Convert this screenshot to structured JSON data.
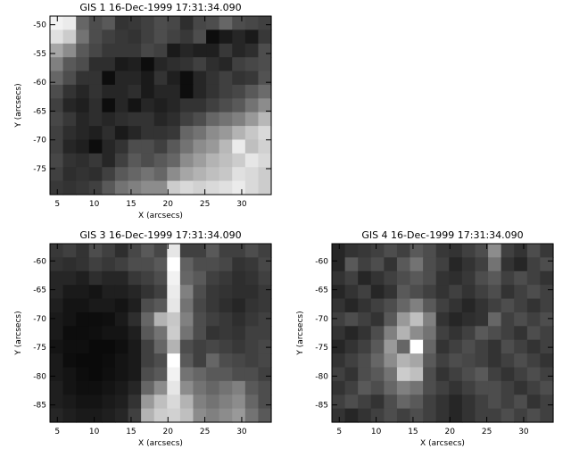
{
  "chart_data": [
    {
      "type": "heatmap",
      "title": "GIS 1 16-Dec-1999 17:31:34.090",
      "xlabel": "X (arcsecs)",
      "ylabel": "Y (arcsecs)",
      "xlim": [
        4,
        34
      ],
      "ylim": [
        -79.5,
        -48.5
      ],
      "xticks": [
        5,
        10,
        15,
        20,
        25,
        30
      ],
      "yticks": [
        -50,
        -55,
        -60,
        -65,
        -70,
        -75
      ],
      "colormap": "grayscale",
      "grid_values": [
        [
          0.95,
          0.92,
          0.4,
          0.3,
          0.35,
          0.2,
          0.22,
          0.25,
          0.3,
          0.28,
          0.18,
          0.28,
          0.3,
          0.4,
          0.3,
          0.28,
          0.25
        ],
        [
          0.88,
          0.8,
          0.45,
          0.3,
          0.25,
          0.22,
          0.2,
          0.25,
          0.3,
          0.26,
          0.22,
          0.3,
          0.05,
          0.1,
          0.15,
          0.1,
          0.22
        ],
        [
          0.65,
          0.55,
          0.35,
          0.28,
          0.22,
          0.22,
          0.22,
          0.28,
          0.25,
          0.1,
          0.15,
          0.12,
          0.12,
          0.22,
          0.15,
          0.18,
          0.3
        ],
        [
          0.5,
          0.35,
          0.3,
          0.18,
          0.18,
          0.1,
          0.12,
          0.05,
          0.15,
          0.18,
          0.2,
          0.25,
          0.18,
          0.15,
          0.25,
          0.28,
          0.3
        ],
        [
          0.4,
          0.3,
          0.2,
          0.2,
          0.05,
          0.15,
          0.15,
          0.1,
          0.2,
          0.12,
          0.05,
          0.15,
          0.2,
          0.25,
          0.2,
          0.22,
          0.32
        ],
        [
          0.3,
          0.2,
          0.15,
          0.2,
          0.15,
          0.15,
          0.18,
          0.1,
          0.15,
          0.15,
          0.05,
          0.15,
          0.2,
          0.25,
          0.28,
          0.35,
          0.42
        ],
        [
          0.25,
          0.15,
          0.12,
          0.18,
          0.05,
          0.15,
          0.08,
          0.15,
          0.12,
          0.15,
          0.2,
          0.2,
          0.25,
          0.3,
          0.35,
          0.45,
          0.55
        ],
        [
          0.28,
          0.22,
          0.15,
          0.18,
          0.15,
          0.18,
          0.2,
          0.2,
          0.15,
          0.18,
          0.25,
          0.3,
          0.4,
          0.45,
          0.5,
          0.6,
          0.72
        ],
        [
          0.25,
          0.18,
          0.15,
          0.12,
          0.18,
          0.1,
          0.15,
          0.2,
          0.2,
          0.22,
          0.4,
          0.45,
          0.55,
          0.6,
          0.7,
          0.78,
          0.85
        ],
        [
          0.25,
          0.15,
          0.12,
          0.05,
          0.15,
          0.2,
          0.3,
          0.3,
          0.25,
          0.35,
          0.45,
          0.55,
          0.6,
          0.72,
          0.92,
          0.75,
          0.82
        ],
        [
          0.28,
          0.2,
          0.18,
          0.22,
          0.15,
          0.25,
          0.35,
          0.3,
          0.35,
          0.4,
          0.55,
          0.62,
          0.7,
          0.75,
          0.8,
          0.9,
          0.85
        ],
        [
          0.25,
          0.18,
          0.2,
          0.18,
          0.25,
          0.35,
          0.4,
          0.45,
          0.4,
          0.55,
          0.65,
          0.7,
          0.75,
          0.78,
          0.88,
          0.85,
          0.8
        ],
        [
          0.22,
          0.2,
          0.22,
          0.25,
          0.35,
          0.45,
          0.5,
          0.55,
          0.55,
          0.8,
          0.85,
          0.82,
          0.85,
          0.88,
          0.92,
          0.85,
          0.8
        ]
      ]
    },
    {
      "type": "heatmap",
      "title": "GIS 3 16-Dec-1999 17:31:34.090",
      "xlabel": "X (arcsecs)",
      "ylabel": "Y (arcsecs)",
      "xlim": [
        4,
        34
      ],
      "ylim": [
        -88,
        -57
      ],
      "xticks": [
        5,
        10,
        15,
        20,
        25,
        30
      ],
      "yticks": [
        -60,
        -65,
        -70,
        -75,
        -80,
        -85
      ],
      "colormap": "grayscale",
      "grid_values": [
        [
          0.22,
          0.25,
          0.2,
          0.3,
          0.25,
          0.18,
          0.28,
          0.35,
          0.28,
          0.9,
          0.25,
          0.25,
          0.35,
          0.25,
          0.25,
          0.3,
          0.25
        ],
        [
          0.2,
          0.18,
          0.2,
          0.25,
          0.22,
          0.25,
          0.3,
          0.3,
          0.35,
          1.0,
          0.38,
          0.3,
          0.3,
          0.28,
          0.2,
          0.22,
          0.28
        ],
        [
          0.15,
          0.15,
          0.12,
          0.18,
          0.15,
          0.15,
          0.22,
          0.25,
          0.3,
          0.95,
          0.4,
          0.35,
          0.25,
          0.22,
          0.18,
          0.2,
          0.25
        ],
        [
          0.15,
          0.1,
          0.1,
          0.08,
          0.12,
          0.12,
          0.15,
          0.2,
          0.25,
          0.92,
          0.5,
          0.3,
          0.22,
          0.2,
          0.18,
          0.18,
          0.22
        ],
        [
          0.12,
          0.08,
          0.08,
          0.1,
          0.1,
          0.08,
          0.12,
          0.3,
          0.35,
          0.9,
          0.45,
          0.28,
          0.22,
          0.18,
          0.15,
          0.2,
          0.22
        ],
        [
          0.1,
          0.08,
          0.05,
          0.05,
          0.06,
          0.1,
          0.18,
          0.4,
          0.7,
          0.78,
          0.5,
          0.3,
          0.25,
          0.22,
          0.18,
          0.22,
          0.25
        ],
        [
          0.1,
          0.05,
          0.05,
          0.06,
          0.08,
          0.08,
          0.12,
          0.35,
          0.45,
          0.8,
          0.45,
          0.3,
          0.2,
          0.22,
          0.2,
          0.25,
          0.25
        ],
        [
          0.08,
          0.06,
          0.06,
          0.04,
          0.04,
          0.06,
          0.1,
          0.25,
          0.4,
          0.7,
          0.3,
          0.25,
          0.28,
          0.25,
          0.22,
          0.25,
          0.28
        ],
        [
          0.1,
          0.05,
          0.04,
          0.04,
          0.05,
          0.08,
          0.1,
          0.25,
          0.3,
          1.0,
          0.35,
          0.25,
          0.4,
          0.3,
          0.28,
          0.25,
          0.28
        ],
        [
          0.1,
          0.08,
          0.05,
          0.04,
          0.06,
          0.08,
          0.1,
          0.3,
          0.35,
          0.95,
          0.45,
          0.4,
          0.35,
          0.35,
          0.3,
          0.3,
          0.25
        ],
        [
          0.12,
          0.08,
          0.06,
          0.06,
          0.08,
          0.1,
          0.15,
          0.4,
          0.55,
          0.9,
          0.55,
          0.45,
          0.4,
          0.45,
          0.5,
          0.35,
          0.3
        ],
        [
          0.12,
          0.1,
          0.08,
          0.08,
          0.1,
          0.12,
          0.2,
          0.6,
          0.75,
          0.85,
          0.7,
          0.5,
          0.45,
          0.5,
          0.55,
          0.4,
          0.3
        ],
        [
          0.15,
          0.12,
          0.1,
          0.1,
          0.12,
          0.15,
          0.25,
          0.7,
          0.8,
          0.82,
          0.75,
          0.55,
          0.5,
          0.55,
          0.6,
          0.45,
          0.35
        ]
      ]
    },
    {
      "type": "heatmap",
      "title": "GIS 4 16-Dec-1999 17:31:34.090",
      "xlabel": "X (arcsecs)",
      "ylabel": "Y (arcsecs)",
      "xlim": [
        4,
        34
      ],
      "ylim": [
        -88,
        -57
      ],
      "xticks": [
        5,
        10,
        15,
        20,
        25,
        30
      ],
      "yticks": [
        -60,
        -65,
        -70,
        -75,
        -80,
        -85
      ],
      "colormap": "grayscale",
      "grid_values": [
        [
          0.15,
          0.2,
          0.22,
          0.25,
          0.3,
          0.25,
          0.35,
          0.3,
          0.22,
          0.2,
          0.25,
          0.3,
          0.55,
          0.25,
          0.2,
          0.3,
          0.22
        ],
        [
          0.15,
          0.35,
          0.25,
          0.3,
          0.2,
          0.35,
          0.45,
          0.3,
          0.25,
          0.15,
          0.2,
          0.25,
          0.45,
          0.2,
          0.15,
          0.25,
          0.3
        ],
        [
          0.2,
          0.25,
          0.15,
          0.2,
          0.25,
          0.3,
          0.35,
          0.3,
          0.2,
          0.18,
          0.22,
          0.3,
          0.35,
          0.25,
          0.3,
          0.25,
          0.2
        ],
        [
          0.15,
          0.2,
          0.25,
          0.15,
          0.2,
          0.35,
          0.3,
          0.25,
          0.2,
          0.25,
          0.2,
          0.25,
          0.3,
          0.2,
          0.25,
          0.3,
          0.25
        ],
        [
          0.2,
          0.15,
          0.2,
          0.25,
          0.3,
          0.4,
          0.5,
          0.35,
          0.25,
          0.2,
          0.15,
          0.2,
          0.25,
          0.3,
          0.25,
          0.2,
          0.25
        ],
        [
          0.25,
          0.3,
          0.25,
          0.2,
          0.35,
          0.6,
          0.75,
          0.5,
          0.2,
          0.15,
          0.18,
          0.2,
          0.4,
          0.25,
          0.3,
          0.25,
          0.3
        ],
        [
          0.2,
          0.15,
          0.2,
          0.3,
          0.5,
          0.7,
          0.55,
          0.45,
          0.25,
          0.2,
          0.25,
          0.35,
          0.3,
          0.25,
          0.2,
          0.3,
          0.25
        ],
        [
          0.15,
          0.2,
          0.25,
          0.35,
          0.6,
          0.4,
          1.0,
          0.4,
          0.2,
          0.25,
          0.3,
          0.25,
          0.2,
          0.3,
          0.25,
          0.2,
          0.25
        ],
        [
          0.2,
          0.25,
          0.3,
          0.4,
          0.55,
          0.7,
          0.65,
          0.35,
          0.25,
          0.3,
          0.28,
          0.25,
          0.2,
          0.25,
          0.3,
          0.25,
          0.2
        ],
        [
          0.25,
          0.2,
          0.3,
          0.35,
          0.45,
          0.8,
          0.75,
          0.3,
          0.2,
          0.25,
          0.3,
          0.35,
          0.25,
          0.2,
          0.25,
          0.3,
          0.25
        ],
        [
          0.2,
          0.25,
          0.35,
          0.3,
          0.4,
          0.5,
          0.45,
          0.3,
          0.25,
          0.2,
          0.25,
          0.3,
          0.3,
          0.25,
          0.2,
          0.25,
          0.3
        ],
        [
          0.25,
          0.3,
          0.25,
          0.2,
          0.3,
          0.4,
          0.35,
          0.25,
          0.2,
          0.15,
          0.2,
          0.25,
          0.3,
          0.25,
          0.3,
          0.2,
          0.25
        ],
        [
          0.2,
          0.15,
          0.2,
          0.25,
          0.3,
          0.25,
          0.3,
          0.25,
          0.2,
          0.15,
          0.2,
          0.25,
          0.25,
          0.3,
          0.25,
          0.3,
          0.25
        ]
      ]
    }
  ]
}
